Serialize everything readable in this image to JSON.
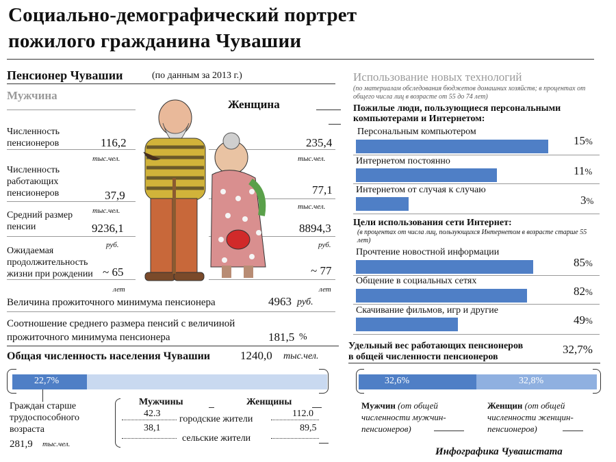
{
  "header": {
    "title_line1": "Социально-демографический портрет",
    "title_line2": "пожилого гражданина Чувашии"
  },
  "pensioner": {
    "heading": "Пенсионер Чувашии",
    "heading_note": "(по данным за  2013 г.)",
    "male_label": "Мужчина",
    "female_label": "Женщина",
    "rows": [
      {
        "label": "Численность пенсионеров",
        "male": "116,2",
        "female": "235,4",
        "unit": "тыс.чел."
      },
      {
        "label": "Численность работающих пенсионеров",
        "male": "37,9",
        "female": "77,1",
        "unit": "тыс.чел."
      },
      {
        "label": "Средний размер пенсии",
        "male": "9236,1",
        "female": "8894,3",
        "unit": "руб."
      },
      {
        "label": "Ожидаемая продолжительность жизни при рождении",
        "male": "~ 65",
        "female": "~ 77",
        "unit": "лет"
      }
    ],
    "subsistence_label": "Величина прожиточного минимума пенсионера",
    "subsistence_value": "4963",
    "subsistence_unit": "руб.",
    "ratio_label": "Соотношение среднего размера пенсий с величиной прожиточного минимума  пенсионера",
    "ratio_value": "181,5",
    "ratio_unit": "%"
  },
  "population": {
    "label": "Общая численность населения  Чувашии",
    "value": "1240,0",
    "unit": "тыс.чел.",
    "share_bar": {
      "percent_label": "22,7%",
      "fraction": 0.227
    },
    "older_label": "Граждан старше трудоспособного возраста",
    "older_value": "281,9",
    "older_unit": "тыс.чел.",
    "men_head": "Мужчины",
    "women_head": "Женщины",
    "urban_label": "городские жители",
    "rural_label": "сельские жители",
    "urban_men": "42.3",
    "urban_women": "112.0",
    "rural_men": "38,1",
    "rural_women": "89,5"
  },
  "tech": {
    "heading": "Использование новых технологий",
    "note": "(по материалам обследования бюджетов домашних хозяйств; в процентах от общего числа  лиц в возрасте  от 55 до 74 лет)",
    "pc_heading": "Пожилые люди, пользующиеся   персональными компьютерами  и  Интернетом:",
    "pc_items": [
      {
        "label": "Персональным компьютером",
        "value": 15,
        "text": "15"
      },
      {
        "label": "Интернетом постоянно",
        "value": 11,
        "text": "11"
      },
      {
        "label": "Интернетом от случая к случаю",
        "value": 3,
        "text": "3"
      }
    ],
    "goals_heading": "Цели использования сети Интернет:",
    "goals_note": "(в процентах от числа  лиц, пользующихся Интернетом в возрасте старше 55 лет)",
    "goal_items": [
      {
        "label": "Прочтение новостной информации",
        "value": 85,
        "text": "85"
      },
      {
        "label": "Общение в социальных сетях",
        "value": 82,
        "text": "82"
      },
      {
        "label": "Скачивание фильмов, игр и другие",
        "value": 49,
        "text": "49"
      }
    ],
    "pct_sign": "%"
  },
  "working": {
    "label_line1": "Удельный вес  работающих пенсионеров",
    "label_line2": "в общей численности пенсионеров",
    "value": "32,7%",
    "men_bar": "32,6%",
    "women_bar": "32,8%",
    "men_caption_bold": "Мужчин",
    "men_caption_rest": "(от общей численности мужчин-пенсионеров)",
    "women_caption_bold": "Женщин",
    "women_caption_rest": "(от общей численности женщин-пенсионеров)"
  },
  "footer": {
    "credit": "Инфографика  Чувашстата"
  },
  "colors": {
    "bar": "#4f7fc6",
    "bar_light": "#c9d9f0",
    "bar_mid": "#8fb0e0"
  }
}
